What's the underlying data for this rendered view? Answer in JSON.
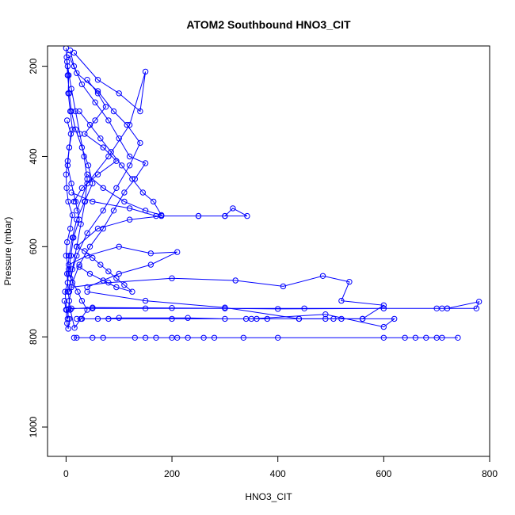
{
  "chart_data": {
    "type": "scatter",
    "title": "ATOM2 Southbound HNO3_CIT",
    "xlabel": "HNO3_CIT",
    "ylabel": "Pressure (mbar)",
    "xlim": [
      -35,
      800
    ],
    "ylim": [
      1065,
      155
    ],
    "y_inverted": true,
    "x_ticks": [
      0,
      200,
      400,
      600,
      800
    ],
    "y_ticks": [
      200,
      400,
      600,
      800,
      1000
    ],
    "grid": false,
    "legend": "none",
    "point_style": "open-circle-with-lines",
    "color": "#0000ff",
    "series": [
      {
        "x": [
          0,
          2,
          5,
          4,
          8,
          12,
          6,
          3,
          10,
          18,
          25,
          14,
          9,
          5,
          22,
          30,
          40,
          28,
          16,
          8,
          4,
          2,
          6,
          12,
          20,
          35,
          50,
          42,
          30,
          18,
          10,
          6,
          3,
          1
        ],
        "y": [
          160,
          190,
          220,
          260,
          300,
          340,
          380,
          420,
          460,
          500,
          540,
          580,
          620,
          660,
          700,
          720,
          740,
          760,
          780,
          740,
          700,
          660,
          620,
          580,
          540,
          500,
          460,
          420,
          380,
          340,
          300,
          260,
          220,
          180
        ]
      },
      {
        "x": [
          8,
          15,
          30,
          55,
          80,
          100,
          120,
          150,
          130,
          110,
          90,
          70,
          45,
          25,
          12,
          6,
          3
        ],
        "y": [
          165,
          200,
          240,
          280,
          320,
          360,
          400,
          415,
          450,
          480,
          520,
          560,
          600,
          640,
          680,
          720,
          760
        ]
      },
      {
        "x": [
          5,
          20,
          60,
          90,
          115,
          140,
          120,
          95,
          70,
          40,
          20,
          8
        ],
        "y": [
          175,
          215,
          255,
          300,
          330,
          370,
          420,
          470,
          520,
          570,
          620,
          670
        ]
      },
      {
        "x": [
          15,
          60,
          100,
          140,
          150,
          120,
          80,
          40,
          20
        ],
        "y": [
          170,
          230,
          260,
          300,
          212,
          330,
          400,
          460,
          520
        ]
      },
      {
        "x": [
          10,
          50,
          120,
          170,
          250,
          300,
          315,
          342,
          300,
          250,
          180,
          120,
          60,
          20
        ],
        "y": [
          480,
          500,
          515,
          532,
          532,
          532,
          515,
          532,
          532,
          532,
          532,
          540,
          560,
          600
        ]
      },
      {
        "x": [
          5,
          40,
          100,
          160,
          210,
          160,
          100,
          40
        ],
        "y": [
          640,
          620,
          600,
          615,
          612,
          640,
          660,
          690
        ]
      },
      {
        "x": [
          10,
          80,
          200,
          320,
          410,
          485,
          535,
          520,
          600,
          560,
          440,
          300,
          150,
          40
        ],
        "y": [
          690,
          680,
          670,
          675,
          688,
          665,
          678,
          720,
          730,
          760,
          760,
          735,
          720,
          700
        ]
      },
      {
        "x": [
          5,
          50,
          200,
          400,
          600,
          700,
          710,
          720,
          780,
          775,
          720,
          600,
          450,
          300,
          150,
          50,
          10
        ],
        "y": [
          738,
          735,
          736,
          738,
          737,
          737,
          737,
          737,
          722,
          737,
          737,
          737,
          737,
          737,
          737,
          737,
          737
        ]
      },
      {
        "x": [
          30,
          60,
          100,
          230,
          300,
          340,
          360,
          380,
          440,
          490,
          505,
          520,
          560,
          620,
          600,
          490,
          350,
          200,
          80,
          20
        ],
        "y": [
          760,
          760,
          758,
          758,
          760,
          760,
          760,
          760,
          760,
          760,
          760,
          760,
          760,
          760,
          778,
          750,
          760,
          760,
          760,
          760
        ]
      },
      {
        "x": [
          15,
          20,
          70,
          130,
          150,
          170,
          210,
          230,
          260,
          280,
          335,
          640,
          660,
          680,
          700,
          710,
          740,
          600,
          400,
          200,
          50
        ],
        "y": [
          802,
          802,
          802,
          802,
          802,
          802,
          802,
          802,
          802,
          802,
          802,
          802,
          802,
          802,
          802,
          802,
          802,
          802,
          802,
          802,
          802
        ]
      },
      {
        "x": [
          -3,
          0,
          2,
          4,
          6,
          1,
          -2,
          3,
          5,
          0,
          2,
          8,
          12,
          4,
          1,
          0,
          3,
          6,
          9,
          2
        ],
        "y": [
          720,
          740,
          770,
          782,
          760,
          740,
          700,
          680,
          650,
          620,
          590,
          560,
          530,
          500,
          470,
          440,
          410,
          380,
          350,
          320
        ]
      },
      {
        "x": [
          20,
          35,
          50,
          65,
          80,
          95,
          110,
          125,
          95,
          70,
          45,
          25
        ],
        "y": [
          600,
          610,
          625,
          640,
          655,
          670,
          685,
          700,
          690,
          675,
          660,
          645
        ]
      },
      {
        "x": [
          25,
          45,
          65,
          85,
          105,
          125,
          145,
          165,
          180,
          150,
          110,
          70,
          40
        ],
        "y": [
          300,
          330,
          360,
          390,
          420,
          450,
          480,
          500,
          530,
          520,
          500,
          470,
          440
        ]
      },
      {
        "x": [
          3,
          10,
          18,
          26,
          34,
          40,
          36,
          28,
          20,
          12,
          6
        ],
        "y": [
          200,
          250,
          300,
          350,
          400,
          450,
          500,
          550,
          600,
          650,
          700
        ]
      },
      {
        "x": [
          40,
          60,
          75,
          55,
          35,
          70,
          95,
          60,
          30,
          15
        ],
        "y": [
          230,
          260,
          290,
          320,
          350,
          380,
          410,
          440,
          470,
          500
        ]
      }
    ]
  }
}
